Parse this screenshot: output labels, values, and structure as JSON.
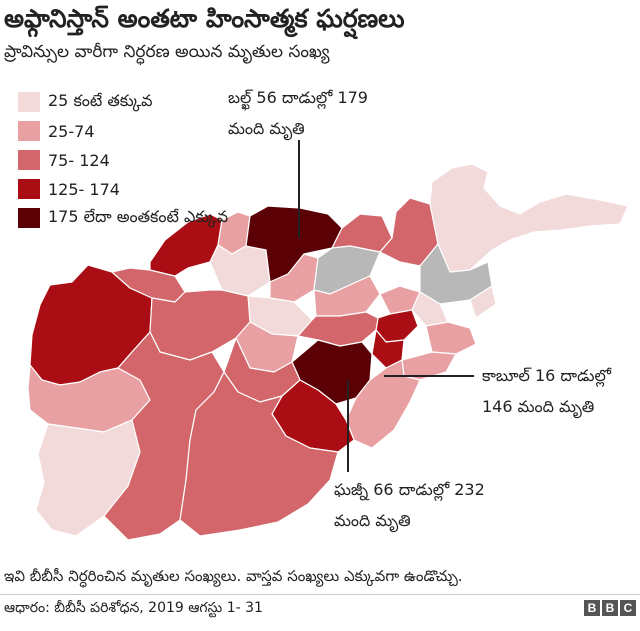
{
  "title": "అఫ్గానిస్తాన్ అంతటా హింసాత్మక ఘర్షణలు",
  "subtitle": "ప్రావిన్సుల వారీగా నిర్ధరణ అయిన మృతుల సంఖ్య",
  "legend": [
    {
      "label": "25 కంటే తక్కువ",
      "color": "#f2d9da"
    },
    {
      "label": "25-74",
      "color": "#e8a0a2"
    },
    {
      "label": "75- 124",
      "color": "#d3666a"
    },
    {
      "label": "125- 174",
      "color": "#aa0e14"
    },
    {
      "label": "175 లేదా అంతకంటే ఎక్కువ",
      "color": "#5b0105"
    }
  ],
  "no_data_color": "#b8b8b8",
  "annotations": {
    "balkh": {
      "line1": "బల్ఖ్ 56 దాడుల్లో 179",
      "line2": "మంది మృతి"
    },
    "kabul": {
      "line1": "కాబూల్ 16 దాడుల్లో",
      "line2": "146 మంది మృతి"
    },
    "ghazni": {
      "line1": "ఘజ్నీ 66 దాడుల్లో 232",
      "line2": "మంది మృతి"
    }
  },
  "footnote": "ఇవి బీబీసీ నిర్ధరించిన మృతుల సంఖ్యలు. వాస్తవ సంఖ్యలు ఎక్కువగా ఉండొచ్చు.",
  "source": "ఆధారం: బీబీసీ పరిశోధన, 2019 ఆగస్టు 1- 31",
  "brand": [
    "B",
    "B",
    "C"
  ]
}
